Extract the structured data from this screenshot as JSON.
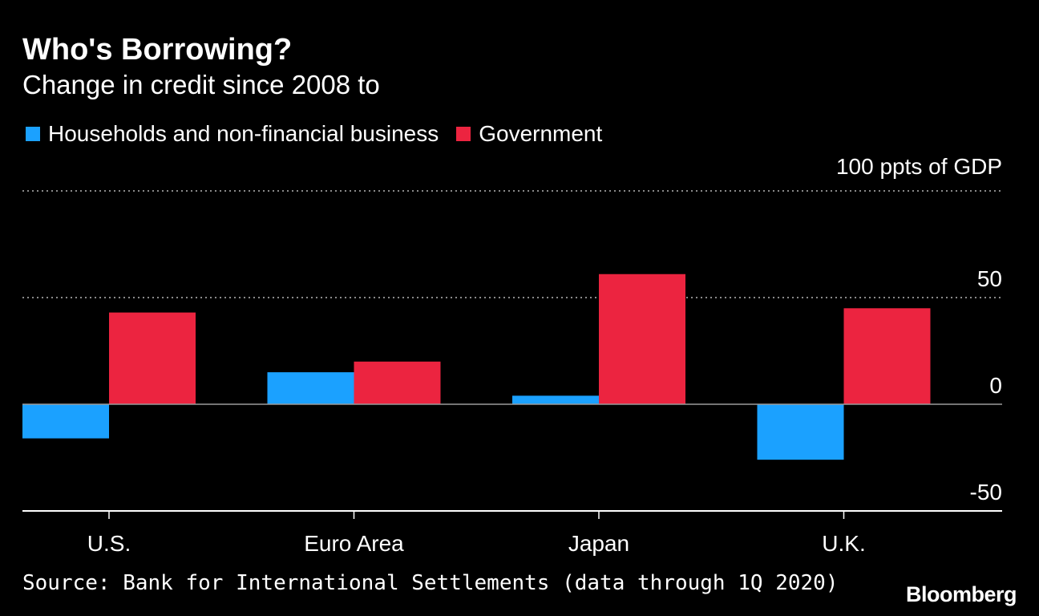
{
  "header": {
    "title": "Who's Borrowing?",
    "subtitle": "Change in credit since 2008 to"
  },
  "footer": {
    "source": "Source: Bank for International Settlements (data through 1Q 2020)",
    "logo": "Bloomberg"
  },
  "colors": {
    "households": "#1ba1ff",
    "government": "#ec2440",
    "background": "#000000",
    "text": "#ffffff",
    "grid": "#8a8a8a"
  },
  "chart_data": {
    "type": "bar",
    "title": "Who's Borrowing?",
    "subtitle": "Change in credit since 2008 to",
    "xlabel": "",
    "ylabel": "",
    "unit_label": "100 ppts of GDP",
    "categories": [
      "U.S.",
      "Euro Area",
      "Japan",
      "U.K."
    ],
    "series": [
      {
        "name": "Households and non-financial business",
        "color": "#1ba1ff",
        "values": [
          -16,
          15,
          4,
          -26
        ]
      },
      {
        "name": "Government",
        "color": "#ec2440",
        "values": [
          43,
          20,
          61,
          45
        ]
      }
    ],
    "ylim": [
      -50,
      100
    ],
    "yticks": [
      {
        "value": 100,
        "label": ""
      },
      {
        "value": 50,
        "label": "50"
      },
      {
        "value": 0,
        "label": "0"
      },
      {
        "value": -50,
        "label": "-50"
      }
    ],
    "grid": true,
    "legend_position": "top-left"
  }
}
